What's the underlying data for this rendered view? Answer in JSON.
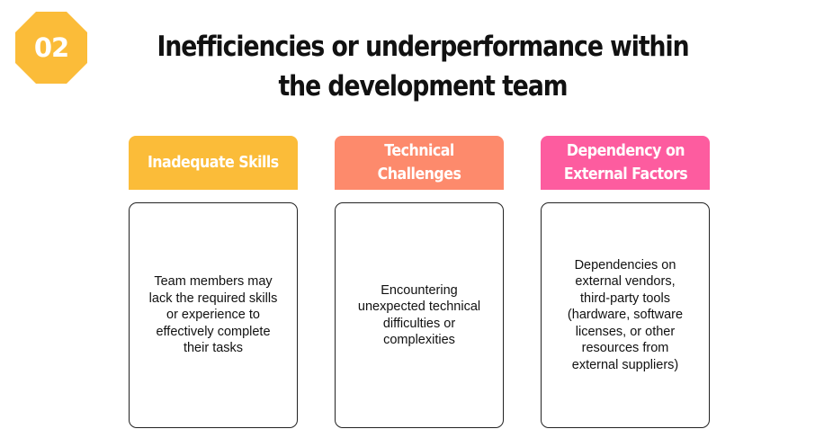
{
  "badge": {
    "number": "02",
    "color": "#FBBC39"
  },
  "title": "Inefficiencies or underperformance within the development team",
  "columns": [
    {
      "header": "Inadequate Skills",
      "color": "#FBBC39",
      "body": "Team members may lack the required skills or experience to effectively complete their tasks"
    },
    {
      "header": "Technical Challenges",
      "color": "#FD8A6C",
      "body": "Encountering unexpected technical difficulties or complexities"
    },
    {
      "header": "Dependency on External Factors",
      "color": "#FD5C9F",
      "body": "Dependencies on external vendors, third-party tools (hardware, software licenses, or other resources from external suppliers)"
    }
  ]
}
